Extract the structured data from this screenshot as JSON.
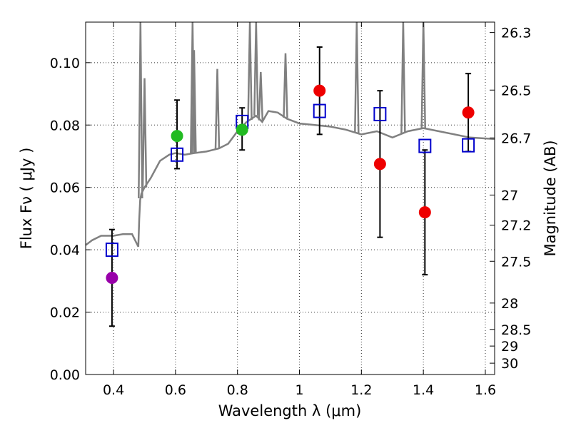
{
  "chart_data": {
    "type": "scatter",
    "xlabel": "Wavelength  λ (μm)",
    "ylabel": "Flux  Fν  ( μJy )",
    "y2label": "Magnitude (AB)",
    "xlim": [
      0.31,
      1.63
    ],
    "ylim": [
      0.0,
      0.113
    ],
    "grid": true,
    "x_ticks": [
      0.4,
      0.6,
      0.8,
      1.0,
      1.2,
      1.4,
      1.6
    ],
    "x_tick_labels": [
      "0.4",
      "0.6",
      "0.8",
      "1",
      "1.2",
      "1.4",
      "1.6"
    ],
    "y_ticks": [
      0.0,
      0.02,
      0.04,
      0.06,
      0.08,
      0.1
    ],
    "y_tick_labels": [
      "0.00",
      "0.02",
      "0.04",
      "0.06",
      "0.08",
      "0.10"
    ],
    "mag_ticks": [
      "26.3",
      "26.5",
      "26.7",
      "27",
      "27.2",
      "27.5",
      "28",
      "28.5",
      "29",
      "30"
    ],
    "colors": {
      "spectrum": "#808080",
      "model": "#0000cc",
      "magenta": "#9900aa",
      "green": "#22bb22",
      "red": "#ee0000",
      "errorbar": "#000000"
    },
    "observed": [
      {
        "x": 0.395,
        "y": 0.031,
        "yerr_lo": 0.0155,
        "yerr_hi": 0.0465,
        "color": "magenta"
      },
      {
        "x": 0.605,
        "y": 0.0765,
        "yerr_lo": 0.066,
        "yerr_hi": 0.088,
        "color": "green"
      },
      {
        "x": 0.815,
        "y": 0.0785,
        "yerr_lo": 0.072,
        "yerr_hi": 0.0855,
        "color": "green"
      },
      {
        "x": 1.065,
        "y": 0.091,
        "yerr_lo": 0.077,
        "yerr_hi": 0.105,
        "color": "red"
      },
      {
        "x": 1.26,
        "y": 0.0675,
        "yerr_lo": 0.044,
        "yerr_hi": 0.091,
        "color": "red"
      },
      {
        "x": 1.405,
        "y": 0.052,
        "yerr_lo": 0.032,
        "yerr_hi": 0.072,
        "color": "red"
      },
      {
        "x": 1.545,
        "y": 0.084,
        "yerr_lo": 0.0715,
        "yerr_hi": 0.0965,
        "color": "red"
      }
    ],
    "model": [
      {
        "x": 0.395,
        "y": 0.04
      },
      {
        "x": 0.605,
        "y": 0.0705
      },
      {
        "x": 0.815,
        "y": 0.081
      },
      {
        "x": 1.065,
        "y": 0.0845
      },
      {
        "x": 1.26,
        "y": 0.0835
      },
      {
        "x": 1.405,
        "y": 0.0733
      },
      {
        "x": 1.545,
        "y": 0.0735
      }
    ],
    "spectrum": {
      "x": [
        0.31,
        0.33,
        0.36,
        0.4,
        0.43,
        0.46,
        0.475,
        0.48,
        0.483,
        0.486,
        0.49,
        0.5,
        0.52,
        0.55,
        0.58,
        0.6,
        0.63,
        0.66,
        0.7,
        0.74,
        0.77,
        0.8,
        0.83,
        0.86,
        0.88,
        0.9,
        0.93,
        0.96,
        1.0,
        1.05,
        1.1,
        1.15,
        1.2,
        1.25,
        1.3,
        1.35,
        1.4,
        1.45,
        1.5,
        1.55,
        1.63
      ],
      "y": [
        0.0415,
        0.043,
        0.0445,
        0.0445,
        0.045,
        0.045,
        0.042,
        0.041,
        0.05,
        0.056,
        0.058,
        0.06,
        0.063,
        0.0685,
        0.0705,
        0.071,
        0.0705,
        0.071,
        0.0715,
        0.0725,
        0.074,
        0.078,
        0.081,
        0.083,
        0.081,
        0.0845,
        0.084,
        0.082,
        0.0805,
        0.08,
        0.0795,
        0.0785,
        0.077,
        0.078,
        0.076,
        0.078,
        0.079,
        0.078,
        0.077,
        0.076,
        0.0755
      ]
    },
    "spikes": [
      {
        "x": 0.487,
        "y": 0.113
      },
      {
        "x": 0.5,
        "y": 0.095
      },
      {
        "x": 0.655,
        "y": 0.113
      },
      {
        "x": 0.66,
        "y": 0.104
      },
      {
        "x": 0.735,
        "y": 0.098
      },
      {
        "x": 0.84,
        "y": 0.113
      },
      {
        "x": 0.86,
        "y": 0.113
      },
      {
        "x": 0.875,
        "y": 0.097
      },
      {
        "x": 0.955,
        "y": 0.103
      },
      {
        "x": 1.185,
        "y": 0.113
      },
      {
        "x": 1.335,
        "y": 0.113
      },
      {
        "x": 1.4,
        "y": 0.113
      }
    ]
  }
}
